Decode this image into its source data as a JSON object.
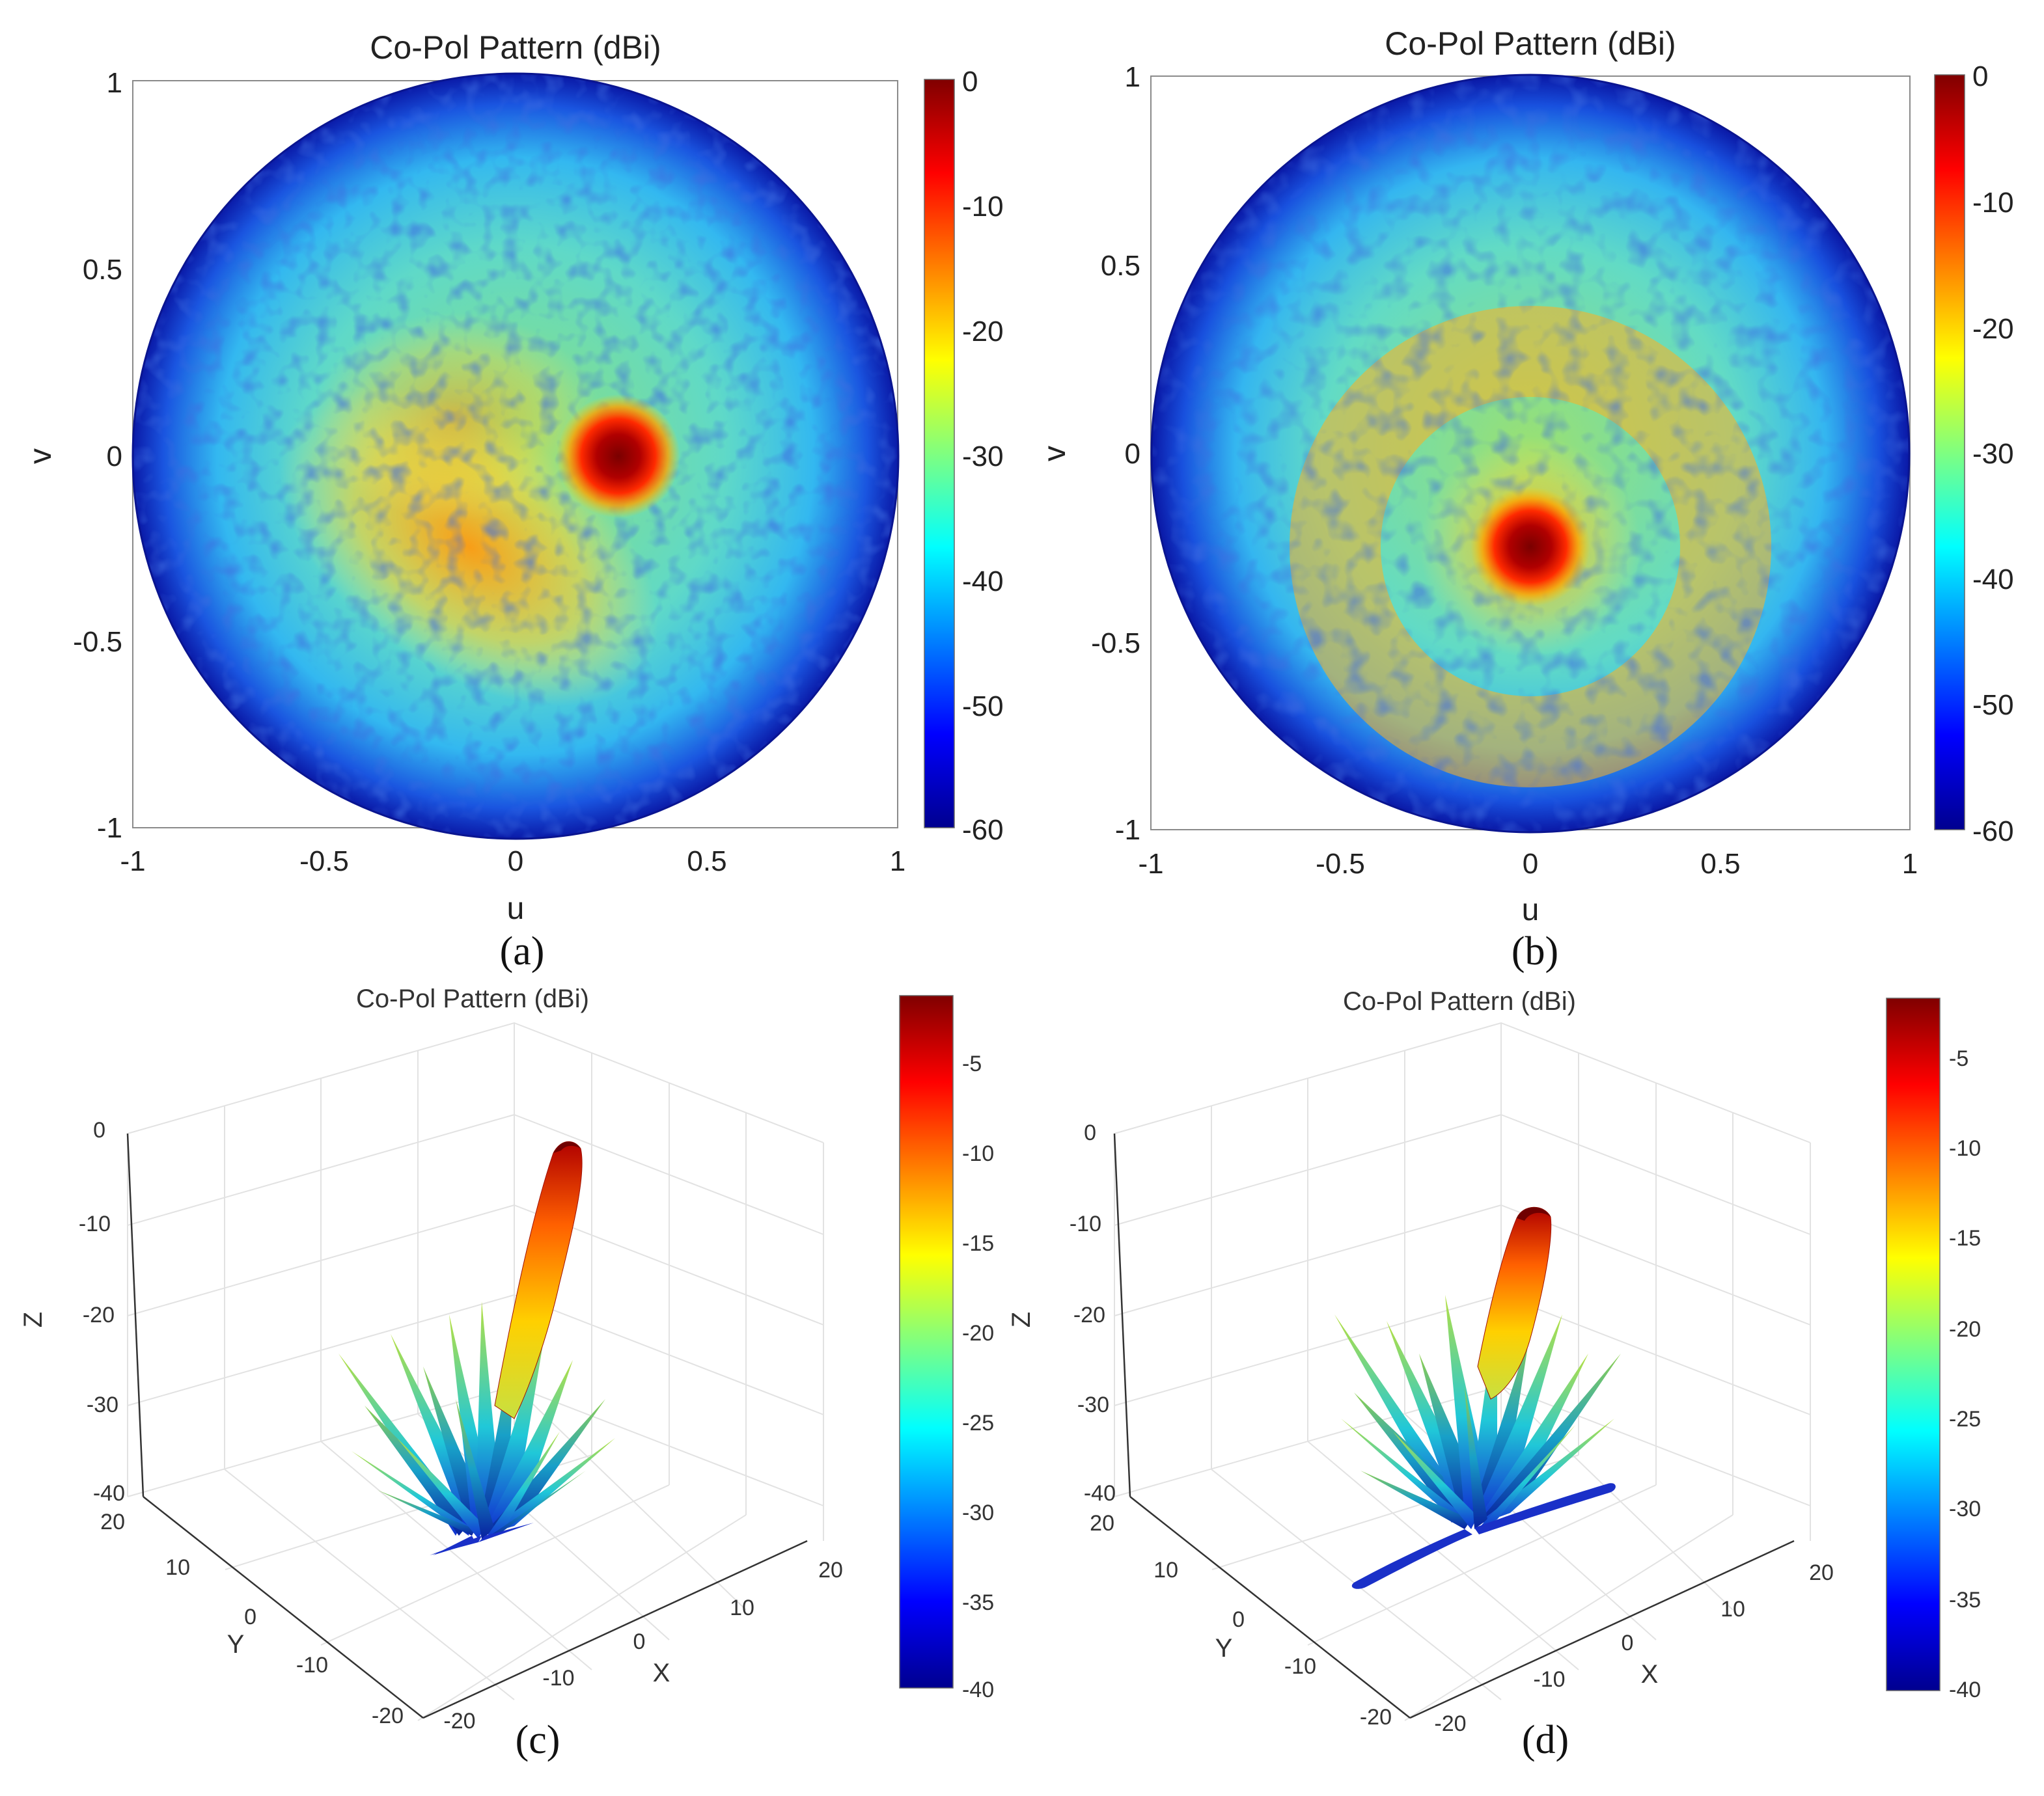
{
  "figure": {
    "panels": [
      {
        "id": "a",
        "caption": "(a)",
        "kind": "uv",
        "title": "Co-Pol Pattern (dBi)",
        "xlabel": "u",
        "ylabel": "v",
        "xticks": [
          "-1",
          "-0.5",
          "0",
          "0.5",
          "1"
        ],
        "yticks": [
          "-1",
          "-0.5",
          "0",
          "0.5",
          "1"
        ],
        "colorbar_ticks": [
          "0",
          "-10",
          "-20",
          "-30",
          "-40",
          "-50",
          "-60"
        ]
      },
      {
        "id": "b",
        "caption": "(b)",
        "kind": "uv",
        "title": "Co-Pol Pattern (dBi)",
        "xlabel": "u",
        "ylabel": "v",
        "xticks": [
          "-1",
          "-0.5",
          "0",
          "0.5",
          "1"
        ],
        "yticks": [
          "-1",
          "-0.5",
          "0",
          "0.5",
          "1"
        ],
        "colorbar_ticks": [
          "0",
          "-10",
          "-20",
          "-30",
          "-40",
          "-50",
          "-60"
        ]
      },
      {
        "id": "c",
        "caption": "(c)",
        "kind": "3d",
        "title": "Co-Pol Pattern (dBi)",
        "xlabel": "X",
        "ylabel": "Y",
        "zlabel": "Z",
        "xticks": [
          "-20",
          "-10",
          "0",
          "10",
          "20"
        ],
        "yticks": [
          "-20",
          "-10",
          "0",
          "10",
          "20"
        ],
        "zticks": [
          "0",
          "-10",
          "-20",
          "-30",
          "-40"
        ],
        "colorbar_ticks": [
          "-5",
          "-10",
          "-15",
          "-20",
          "-25",
          "-30",
          "-35",
          "-40"
        ]
      },
      {
        "id": "d",
        "caption": "(d)",
        "kind": "3d",
        "title": "Co-Pol Pattern (dBi)",
        "xlabel": "X",
        "ylabel": "Y",
        "zlabel": "Z",
        "xticks": [
          "-20",
          "-10",
          "0",
          "10",
          "20"
        ],
        "yticks": [
          "-20",
          "-10",
          "0",
          "10",
          "20"
        ],
        "zticks": [
          "0",
          "-10",
          "-20",
          "-30",
          "-40"
        ],
        "colorbar_ticks": [
          "-5",
          "-10",
          "-15",
          "-20",
          "-25",
          "-30",
          "-35",
          "-40"
        ]
      }
    ]
  },
  "chart_data": [
    {
      "panel": "a",
      "type": "heatmap",
      "title": "Co-Pol Pattern (dBi)",
      "xlabel": "u",
      "ylabel": "v",
      "xlim": [
        -1,
        1
      ],
      "ylim": [
        -1,
        1
      ],
      "clim": [
        -60,
        0
      ],
      "colormap": "jet",
      "colorbar_ticks": [
        0,
        -10,
        -20,
        -30,
        -40,
        -50,
        -60
      ],
      "main_beam": {
        "u": 0.27,
        "v": 0.0,
        "peak_dBi": 0
      },
      "background_level_dBi": -38,
      "edge_level_dBi": -55,
      "sidelobe_arc": {
        "center_u": 0.0,
        "center_v": -0.35,
        "level_dBi": -20
      }
    },
    {
      "panel": "b",
      "type": "heatmap",
      "title": "Co-Pol Pattern (dBi)",
      "xlabel": "u",
      "ylabel": "v",
      "xlim": [
        -1,
        1
      ],
      "ylim": [
        -1,
        1
      ],
      "clim": [
        -60,
        0
      ],
      "colormap": "jet",
      "colorbar_ticks": [
        0,
        -10,
        -20,
        -30,
        -40,
        -50,
        -60
      ],
      "main_beam": {
        "u": 0.0,
        "v": -0.25,
        "peak_dBi": 0
      },
      "background_level_dBi": -38,
      "edge_level_dBi": -55,
      "sidelobe_ring": {
        "center_u": 0.0,
        "center_v": -0.25,
        "radius": 0.4,
        "level_dBi": -20
      }
    },
    {
      "panel": "c",
      "type": "surface3d",
      "title": "Co-Pol Pattern (dBi)",
      "xlabel": "X",
      "ylabel": "Y",
      "zlabel": "Z",
      "xlim": [
        -20,
        20
      ],
      "ylim": [
        -20,
        20
      ],
      "zlim": [
        -40,
        0
      ],
      "clim": [
        -40,
        -2
      ],
      "colormap": "jet",
      "colorbar_ticks": [
        -5,
        -10,
        -15,
        -20,
        -25,
        -30,
        -35,
        -40
      ],
      "main_lobe_peak_dBi": -2
    },
    {
      "panel": "d",
      "type": "surface3d",
      "title": "Co-Pol Pattern (dBi)",
      "xlabel": "X",
      "ylabel": "Y",
      "zlabel": "Z",
      "xlim": [
        -20,
        20
      ],
      "ylim": [
        -20,
        20
      ],
      "zlim": [
        -40,
        0
      ],
      "clim": [
        -40,
        -2
      ],
      "colormap": "jet",
      "colorbar_ticks": [
        -5,
        -10,
        -15,
        -20,
        -25,
        -30,
        -35,
        -40
      ],
      "main_lobe_peak_dBi": -2
    }
  ]
}
